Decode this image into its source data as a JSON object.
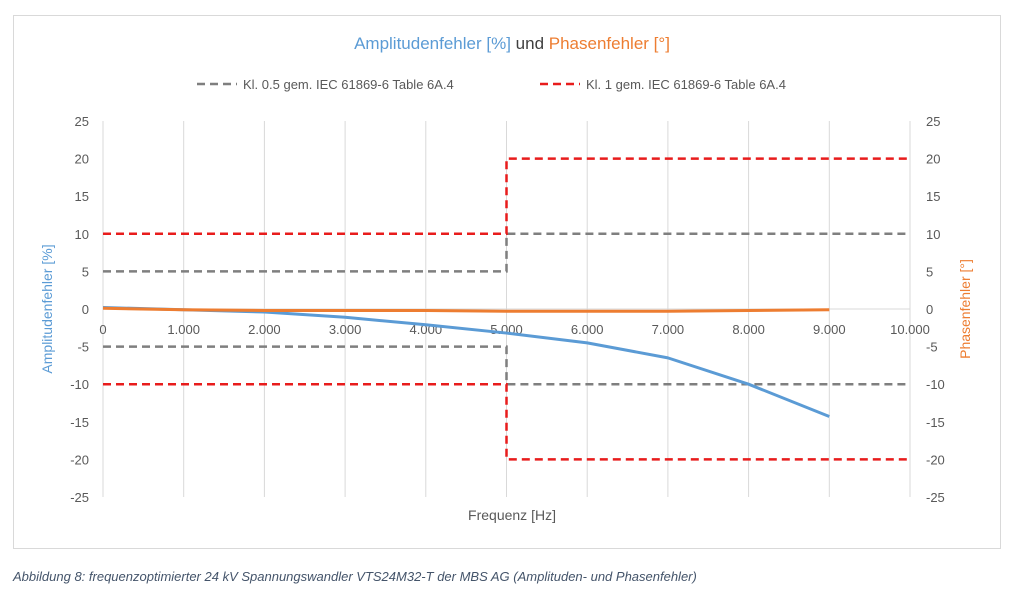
{
  "chart_data": {
    "type": "line",
    "title_parts": [
      {
        "text": "Amplitudenfehler [%]",
        "color": "#5b9bd5"
      },
      {
        "text": " und ",
        "color": "#404040"
      },
      {
        "text": "Phasenfehler [°]",
        "color": "#ed7d31"
      }
    ],
    "xlabel": "Frequenz [Hz]",
    "ylabel_left": "Amplitudenfehler [%]",
    "ylabel_right": "Phasenfehler [°]",
    "xlim": [
      0,
      10000
    ],
    "ylim": [
      -25,
      25
    ],
    "y2lim": [
      -25,
      25
    ],
    "x_ticks": [
      "0",
      "1.000",
      "2.000",
      "3.000",
      "4.000",
      "5.000",
      "6.000",
      "7.000",
      "8.000",
      "9.000",
      "10.000"
    ],
    "y_ticks": [
      "25",
      "20",
      "15",
      "10",
      "5",
      "0",
      "-5",
      "-10",
      "-15",
      "-20",
      "-25"
    ],
    "grid": "vertical",
    "legend_position": "top",
    "legend": [
      {
        "name": "Kl. 0.5 gem. IEC 61869-6 Table 6A.4",
        "color": "#7f7f7f"
      },
      {
        "name": "Kl. 1 gem. IEC 61869-6 Table 6A.4",
        "color": "#e81c1c"
      }
    ],
    "limit_lines": [
      {
        "legend": 0,
        "points": [
          [
            0,
            5
          ],
          [
            5000,
            5
          ],
          [
            5000,
            10
          ],
          [
            10000,
            10
          ]
        ]
      },
      {
        "legend": 0,
        "points": [
          [
            0,
            -5
          ],
          [
            5000,
            -5
          ],
          [
            5000,
            -10
          ],
          [
            10000,
            -10
          ]
        ]
      },
      {
        "legend": 1,
        "points": [
          [
            0,
            10
          ],
          [
            5000,
            10
          ],
          [
            5000,
            20
          ],
          [
            10000,
            20
          ]
        ]
      },
      {
        "legend": 1,
        "points": [
          [
            0,
            -10
          ],
          [
            5000,
            -10
          ],
          [
            5000,
            -20
          ],
          [
            10000,
            -20
          ]
        ]
      }
    ],
    "series": [
      {
        "axis": "left",
        "color": "#5b9bd5",
        "x": [
          0,
          1000,
          2000,
          3000,
          4000,
          5000,
          6000,
          7000,
          8000,
          9000
        ],
        "y": [
          0.2,
          -0.1,
          -0.4,
          -1.1,
          -2.1,
          -3.2,
          -4.5,
          -6.5,
          -10,
          -14.3
        ]
      },
      {
        "axis": "right",
        "color": "#ed7d31",
        "x": [
          0,
          1000,
          2000,
          3000,
          4000,
          5000,
          6000,
          7000,
          8000,
          9000
        ],
        "y": [
          0.1,
          -0.1,
          -0.2,
          -0.2,
          -0.2,
          -0.3,
          -0.3,
          -0.3,
          -0.2,
          -0.1
        ]
      }
    ]
  },
  "caption": "Abbildung 8: frequenzoptimierter 24 kV Spannungswandler VTS24M32-T der MBS AG (Amplituden- und Phasenfehler)"
}
